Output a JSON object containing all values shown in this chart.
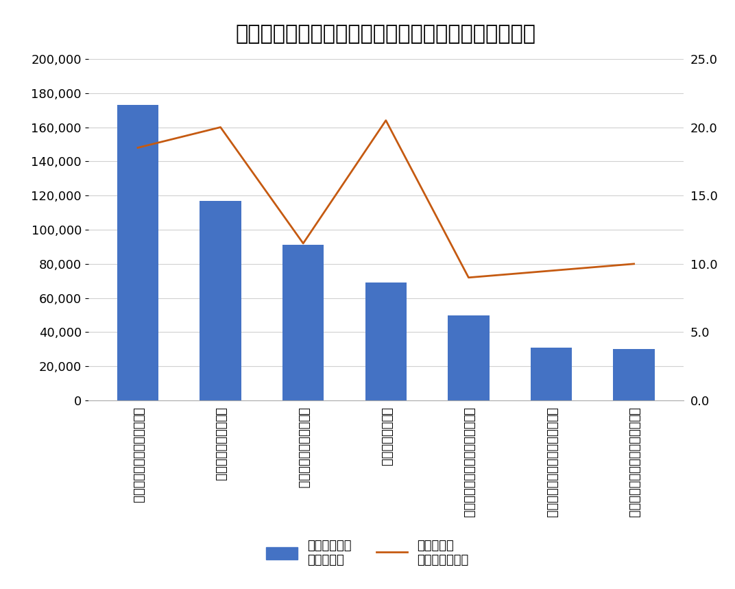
{
  "title": "「調剤」売上ランキング＜上場ドラッグストア企業＞",
  "categories": [
    "ウエルシアホールディングス",
    "スギホールディングス",
    "ツルハホールディングス",
    "ココカラファイン",
    "マツモトキヨシホールディングス",
    "クリエイトＳＤホールディングス",
    "クスリのアオキホールディングス"
  ],
  "bar_values": [
    173000,
    117000,
    91000,
    69000,
    50000,
    31000,
    30000
  ],
  "line_values": [
    18.5,
    20.0,
    11.5,
    20.5,
    9.0,
    9.5,
    10.0
  ],
  "bar_color": "#4472C4",
  "line_color": "#C55A11",
  "ylim_left": [
    0,
    200000
  ],
  "ylim_right": [
    0.0,
    25.0
  ],
  "yticks_left": [
    0,
    20000,
    40000,
    60000,
    80000,
    100000,
    120000,
    140000,
    160000,
    180000,
    200000
  ],
  "yticks_right": [
    0.0,
    5.0,
    10.0,
    15.0,
    20.0,
    25.0
  ],
  "legend_bar_label": "調剤事業売上\n（百万円）",
  "legend_line_label": "対総売上高\n構成比率（％）",
  "background_color": "#ffffff",
  "grid_color": "#d0d0d0",
  "title_fontsize": 22,
  "tick_fontsize": 13,
  "legend_fontsize": 13
}
